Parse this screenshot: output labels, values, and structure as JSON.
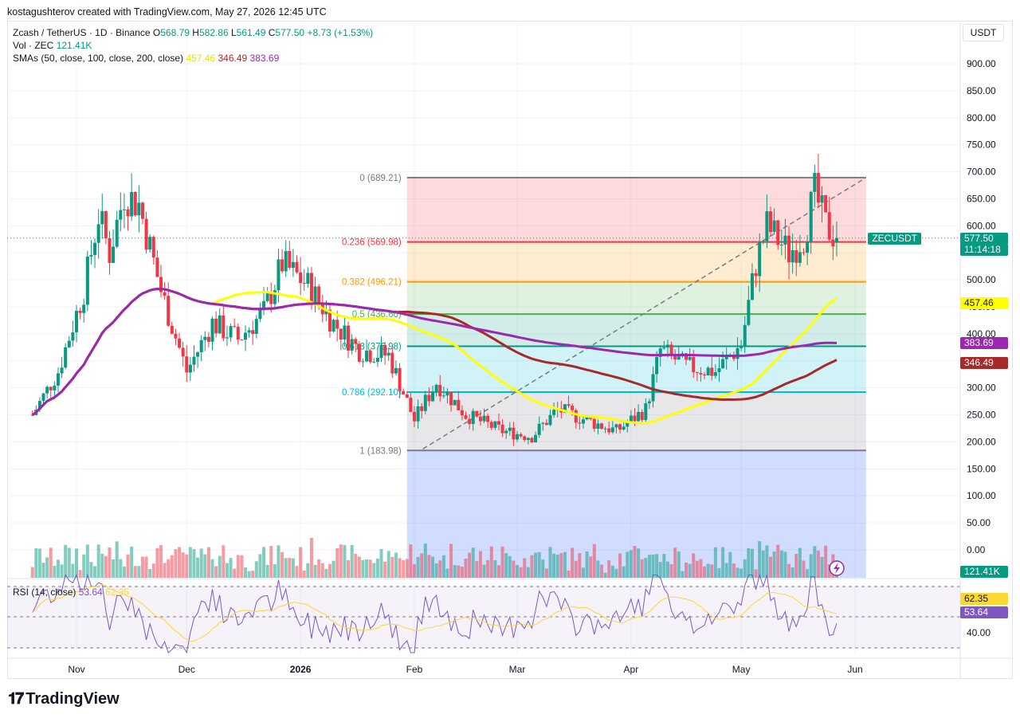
{
  "header": {
    "creator": "kostagushterov created with TradingView.com, May 27, 2026 12:45 UTC"
  },
  "legend": {
    "symbol": "Zcash / TetherUS · 1D · Binance",
    "o_label": "O",
    "o_value": "568.79",
    "h_label": "H",
    "h_value": "582.86",
    "l_label": "L",
    "l_value": "561.49",
    "c_label": "C",
    "c_value": "577.50",
    "change": "+8.73 (+1.53%)",
    "vol_label": "Vol · ZEC",
    "vol_value": "121.41K",
    "sma_label": "SMAs (50, close, 100, close, 200, close)",
    "sma50": "457.46",
    "sma100": "346.49",
    "sma200": "383.69",
    "rsi_label": "RSI (14, close)",
    "rsi_value": "53.64",
    "rsi_ma_value": "62.35"
  },
  "currency": "USDT",
  "badges": {
    "symbol_tag": "ZECUSDT",
    "price": "577.50",
    "countdown": "11:14:18",
    "sma50": "457.46",
    "sma200": "383.69",
    "sma100": "346.49",
    "volume": "121.41K",
    "rsi_ma": "62.35",
    "rsi": "53.64"
  },
  "colors": {
    "up": "#089981",
    "down": "#f23645",
    "sma50": "#ffff00",
    "sma100": "#a52a2a",
    "sma200": "#9c27b0",
    "rsi": "#7e57c2",
    "rsi_ma": "#fdd835"
  },
  "chart_data": {
    "type": "candlestick",
    "y_axis_ticks": [
      "900.00",
      "850.00",
      "800.00",
      "750.00",
      "700.00",
      "650.00",
      "600.00",
      "550.00",
      "500.00",
      "450.00",
      "400.00",
      "350.00",
      "300.00",
      "250.00",
      "200.00",
      "150.00",
      "100.00",
      "50.00",
      "0.00"
    ],
    "rsi_axis_ticks": [
      "40.00"
    ],
    "x_axis_ticks": [
      "Nov",
      "Dec",
      "2026",
      "Feb",
      "Mar",
      "Apr",
      "May",
      "Jun"
    ],
    "fibonacci": [
      {
        "label": "0 (689.21)",
        "value": 689.21,
        "color": "#787b86"
      },
      {
        "label": "0.236 (569.98)",
        "value": 569.98,
        "color": "#f23645"
      },
      {
        "label": "0.382 (496.21)",
        "value": 496.21,
        "color": "#ff9800"
      },
      {
        "label": "0.5 (436.60)",
        "value": 436.6,
        "color": "#4caf50"
      },
      {
        "label": "0.618 (376.98)",
        "value": 376.98,
        "color": "#089981"
      },
      {
        "label": "0.786 (292.10)",
        "value": 292.1,
        "color": "#00bcd4"
      },
      {
        "label": "1 (183.98)",
        "value": 183.98,
        "color": "#787b86"
      }
    ],
    "candles_approx": [
      {
        "date": "2025-10-20",
        "close": 250
      },
      {
        "date": "2025-10-27",
        "close": 330
      },
      {
        "date": "2025-11-03",
        "close": 480
      },
      {
        "date": "2025-11-07",
        "close": 620
      },
      {
        "date": "2025-11-10",
        "close": 550
      },
      {
        "date": "2025-11-14",
        "close": 660
      },
      {
        "date": "2025-11-18",
        "close": 640
      },
      {
        "date": "2025-11-24",
        "close": 480
      },
      {
        "date": "2025-12-01",
        "close": 330
      },
      {
        "date": "2025-12-08",
        "close": 420
      },
      {
        "date": "2025-12-15",
        "close": 390
      },
      {
        "date": "2025-12-22",
        "close": 440
      },
      {
        "date": "2025-12-27",
        "close": 530
      },
      {
        "date": "2026-01-03",
        "close": 490
      },
      {
        "date": "2026-01-10",
        "close": 420
      },
      {
        "date": "2026-01-17",
        "close": 370
      },
      {
        "date": "2026-01-25",
        "close": 360
      },
      {
        "date": "2026-02-01",
        "close": 240
      },
      {
        "date": "2026-02-07",
        "close": 310
      },
      {
        "date": "2026-02-15",
        "close": 250
      },
      {
        "date": "2026-02-25",
        "close": 220
      },
      {
        "date": "2026-03-05",
        "close": 210
      },
      {
        "date": "2026-03-12",
        "close": 260
      },
      {
        "date": "2026-03-20",
        "close": 240
      },
      {
        "date": "2026-03-28",
        "close": 220
      },
      {
        "date": "2026-04-05",
        "close": 260
      },
      {
        "date": "2026-04-09",
        "close": 370
      },
      {
        "date": "2026-04-16",
        "close": 340
      },
      {
        "date": "2026-04-24",
        "close": 330
      },
      {
        "date": "2026-05-01",
        "close": 380
      },
      {
        "date": "2026-05-05",
        "close": 530
      },
      {
        "date": "2026-05-08",
        "close": 600
      },
      {
        "date": "2026-05-14",
        "close": 550
      },
      {
        "date": "2026-05-18",
        "close": 580
      },
      {
        "date": "2026-05-21",
        "close": 660
      },
      {
        "date": "2026-05-24",
        "close": 600
      },
      {
        "date": "2026-05-27",
        "close": 577.5
      }
    ]
  }
}
